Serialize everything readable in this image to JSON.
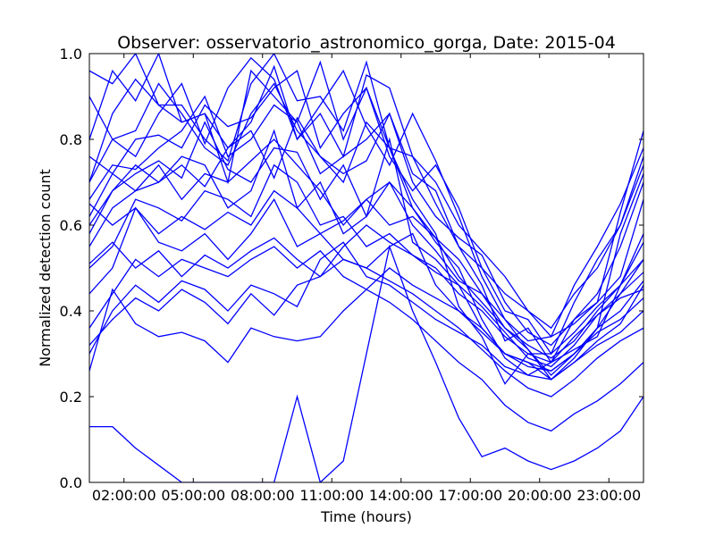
{
  "chart_data": {
    "type": "line",
    "title": "Observer: osservatorio_astronomico_gorga, Date: 2015-04",
    "xlabel": "Time (hours)",
    "ylabel": "Normalized detection count",
    "xlim": [
      0.5,
      24.5
    ],
    "ylim": [
      0.0,
      1.0
    ],
    "x_ticks": [
      {
        "value": 2,
        "label": "02:00:00"
      },
      {
        "value": 5,
        "label": "05:00:00"
      },
      {
        "value": 8,
        "label": "08:00:00"
      },
      {
        "value": 11,
        "label": "11:00:00"
      },
      {
        "value": 14,
        "label": "14:00:00"
      },
      {
        "value": 17,
        "label": "17:00:00"
      },
      {
        "value": 20,
        "label": "20:00:00"
      },
      {
        "value": 23,
        "label": "23:00:00"
      }
    ],
    "y_ticks": [
      {
        "value": 0.0,
        "label": "0.0"
      },
      {
        "value": 0.2,
        "label": "0.2"
      },
      {
        "value": 0.4,
        "label": "0.4"
      },
      {
        "value": 0.6,
        "label": "0.6"
      },
      {
        "value": 0.8,
        "label": "0.8"
      },
      {
        "value": 1.0,
        "label": "1.0"
      }
    ],
    "grid": false,
    "line_color": "#0000ff",
    "x": [
      0.5,
      1.5,
      2.5,
      3.5,
      4.5,
      5.5,
      6.5,
      7.5,
      8.5,
      9.5,
      10.5,
      11.5,
      12.5,
      13.5,
      14.5,
      15.5,
      16.5,
      17.5,
      18.5,
      19.5,
      20.5,
      21.5,
      22.5,
      23.5,
      24.5
    ],
    "series": [
      {
        "values": [
          0.96,
          0.93,
          1.0,
          0.88,
          0.88,
          0.8,
          0.75,
          0.93,
          1.0,
          0.89,
          0.9,
          0.82,
          0.98,
          0.78,
          0.66,
          0.58,
          0.41,
          0.34,
          0.23,
          0.3,
          0.28,
          0.38,
          0.42,
          0.63,
          0.82
        ]
      },
      {
        "values": [
          0.9,
          0.8,
          0.82,
          0.93,
          0.86,
          0.78,
          0.74,
          0.86,
          0.93,
          0.82,
          0.76,
          0.72,
          0.75,
          0.86,
          0.72,
          0.68,
          0.55,
          0.46,
          0.33,
          0.36,
          0.28,
          0.31,
          0.34,
          0.46,
          0.52
        ]
      },
      {
        "values": [
          0.76,
          0.72,
          0.68,
          0.7,
          0.74,
          0.69,
          0.78,
          0.82,
          0.71,
          0.85,
          0.76,
          0.7,
          0.84,
          0.78,
          0.64,
          0.56,
          0.5,
          0.38,
          0.29,
          0.25,
          0.28,
          0.34,
          0.39,
          0.44,
          0.49
        ]
      },
      {
        "values": [
          0.65,
          0.6,
          0.64,
          0.58,
          0.62,
          0.59,
          0.63,
          0.6,
          0.68,
          0.64,
          0.58,
          0.61,
          0.66,
          0.6,
          0.62,
          0.57,
          0.52,
          0.44,
          0.36,
          0.31,
          0.25,
          0.3,
          0.36,
          0.4,
          0.47
        ]
      },
      {
        "values": [
          0.51,
          0.56,
          0.5,
          0.54,
          0.48,
          0.53,
          0.5,
          0.54,
          0.57,
          0.52,
          0.48,
          0.55,
          0.6,
          0.56,
          0.53,
          0.49,
          0.46,
          0.41,
          0.35,
          0.29,
          0.27,
          0.32,
          0.39,
          0.43,
          0.45
        ]
      },
      {
        "values": [
          0.32,
          0.38,
          0.43,
          0.4,
          0.45,
          0.42,
          0.37,
          0.44,
          0.39,
          0.46,
          0.48,
          0.52,
          0.5,
          0.47,
          0.44,
          0.4,
          0.36,
          0.31,
          0.26,
          0.22,
          0.2,
          0.24,
          0.29,
          0.33,
          0.36
        ]
      },
      {
        "values": [
          0.26,
          0.45,
          0.37,
          0.34,
          0.35,
          0.33,
          0.28,
          0.36,
          0.34,
          0.33,
          0.34,
          0.4,
          0.45,
          0.42,
          0.38,
          0.33,
          0.28,
          0.24,
          0.18,
          0.14,
          0.12,
          0.16,
          0.19,
          0.23,
          0.28
        ]
      },
      {
        "values": [
          0.13,
          0.13,
          0.08,
          0.04,
          0.0,
          0.0,
          0.0,
          0.0,
          0.0,
          0.2,
          0.0,
          0.05,
          0.3,
          0.55,
          0.4,
          0.28,
          0.15,
          0.06,
          0.08,
          0.05,
          0.03,
          0.05,
          0.08,
          0.12,
          0.2
        ]
      },
      {
        "values": [
          0.7,
          0.8,
          0.76,
          0.86,
          0.93,
          0.79,
          0.92,
          0.99,
          0.94,
          0.8,
          0.88,
          0.96,
          0.83,
          0.74,
          0.86,
          0.75,
          0.62,
          0.48,
          0.38,
          0.31,
          0.24,
          0.29,
          0.36,
          0.58,
          0.72
        ]
      },
      {
        "values": [
          0.66,
          0.74,
          0.73,
          0.78,
          0.82,
          0.9,
          0.76,
          0.8,
          0.88,
          0.84,
          0.72,
          0.76,
          0.8,
          0.86,
          0.7,
          0.62,
          0.57,
          0.53,
          0.42,
          0.35,
          0.32,
          0.38,
          0.44,
          0.55,
          0.7
        ]
      },
      {
        "values": [
          0.58,
          0.68,
          0.72,
          0.75,
          0.71,
          0.84,
          0.73,
          0.7,
          0.78,
          0.77,
          0.66,
          0.74,
          0.62,
          0.7,
          0.6,
          0.54,
          0.47,
          0.44,
          0.38,
          0.33,
          0.34,
          0.37,
          0.42,
          0.48,
          0.66
        ]
      },
      {
        "values": [
          0.5,
          0.55,
          0.66,
          0.64,
          0.61,
          0.68,
          0.66,
          0.62,
          0.74,
          0.7,
          0.6,
          0.62,
          0.55,
          0.58,
          0.53,
          0.5,
          0.44,
          0.4,
          0.34,
          0.3,
          0.3,
          0.35,
          0.41,
          0.46,
          0.58
        ]
      },
      {
        "values": [
          0.36,
          0.44,
          0.52,
          0.48,
          0.52,
          0.5,
          0.48,
          0.52,
          0.55,
          0.5,
          0.54,
          0.48,
          0.45,
          0.5,
          0.46,
          0.43,
          0.4,
          0.36,
          0.3,
          0.27,
          0.26,
          0.3,
          0.35,
          0.38,
          0.43
        ]
      },
      {
        "values": [
          0.3,
          0.4,
          0.46,
          0.42,
          0.47,
          0.45,
          0.4,
          0.46,
          0.44,
          0.41,
          0.52,
          0.56,
          0.48,
          0.46,
          0.42,
          0.38,
          0.35,
          0.32,
          0.27,
          0.25,
          0.24,
          0.28,
          0.32,
          0.35,
          0.4
        ]
      },
      {
        "values": [
          0.62,
          0.72,
          0.8,
          0.81,
          0.78,
          0.88,
          0.83,
          0.85,
          0.92,
          0.96,
          0.78,
          0.86,
          0.92,
          0.78,
          0.76,
          0.65,
          0.55,
          0.5,
          0.4,
          0.38,
          0.3,
          0.42,
          0.52,
          0.6,
          0.74
        ]
      },
      {
        "values": [
          0.55,
          0.64,
          0.68,
          0.74,
          0.66,
          0.72,
          0.7,
          0.75,
          0.8,
          0.74,
          0.68,
          0.6,
          0.66,
          0.7,
          0.64,
          0.57,
          0.48,
          0.42,
          0.36,
          0.32,
          0.29,
          0.33,
          0.4,
          0.46,
          0.56
        ]
      },
      {
        "values": [
          0.7,
          0.86,
          0.94,
          0.88,
          0.84,
          0.86,
          0.7,
          0.96,
          0.9,
          0.84,
          0.98,
          0.8,
          0.92,
          0.76,
          0.68,
          0.74,
          0.64,
          0.5,
          0.44,
          0.4,
          0.34,
          0.46,
          0.55,
          0.65,
          0.78
        ]
      },
      {
        "values": [
          0.6,
          0.68,
          0.74,
          0.7,
          0.76,
          0.74,
          0.64,
          0.68,
          0.82,
          0.64,
          0.7,
          0.58,
          0.62,
          0.8,
          0.56,
          0.52,
          0.46,
          0.36,
          0.3,
          0.28,
          0.26,
          0.3,
          0.36,
          0.44,
          0.52
        ]
      },
      {
        "values": [
          0.44,
          0.5,
          0.64,
          0.56,
          0.54,
          0.58,
          0.52,
          0.58,
          0.66,
          0.55,
          0.58,
          0.52,
          0.5,
          0.55,
          0.58,
          0.46,
          0.4,
          0.35,
          0.3,
          0.28,
          0.24,
          0.28,
          0.33,
          0.37,
          0.46
        ]
      },
      {
        "values": [
          0.8,
          0.96,
          0.89,
          1.0,
          0.84,
          0.86,
          0.78,
          0.84,
          0.97,
          0.8,
          0.86,
          0.76,
          0.95,
          0.92,
          0.76,
          0.7,
          0.6,
          0.54,
          0.48,
          0.4,
          0.36,
          0.44,
          0.5,
          0.6,
          0.76
        ]
      }
    ]
  }
}
